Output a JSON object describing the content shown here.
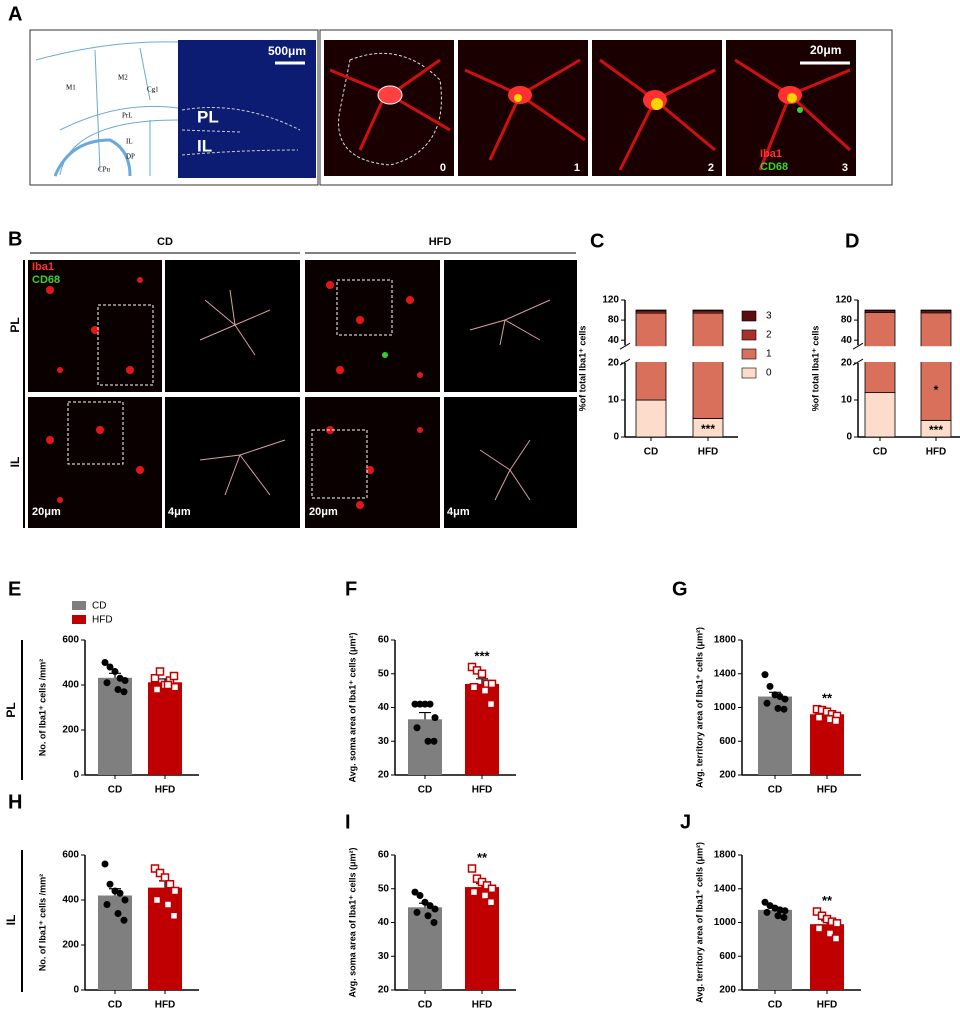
{
  "panel_a": {
    "label": "A",
    "atlas_labels": [
      "M1",
      "M2",
      "Cg1",
      "PrL",
      "IL",
      "DP",
      "CPu"
    ],
    "scale": "500μm",
    "regions": [
      "PL",
      "IL"
    ],
    "stages": [
      "0",
      "1",
      "2",
      "3"
    ],
    "scale_right": "20μm",
    "markers": [
      "Iba1",
      "CD68"
    ]
  },
  "panel_b": {
    "label": "B",
    "groups": [
      "CD",
      "HFD"
    ],
    "rows": [
      "PL",
      "IL"
    ],
    "markers": [
      "Iba1",
      "CD68"
    ],
    "scales": [
      "20μm",
      "4μm"
    ]
  },
  "row_labels": [
    "PL",
    "IL"
  ],
  "chart_data": [
    {
      "type": "stacked_bar",
      "panel": "C",
      "ylabel": "%of total Iba1⁺ cells",
      "categories": [
        "CD",
        "HFD"
      ],
      "series": [
        {
          "name": "0",
          "color": "#fddccb",
          "values": [
            10,
            5
          ],
          "annotations": [
            null,
            "***"
          ]
        },
        {
          "name": "1",
          "color": "#d8705c",
          "values": [
            84,
            89
          ]
        },
        {
          "name": "2",
          "color": "#a8322a",
          "values": [
            4,
            4
          ]
        },
        {
          "name": "3",
          "color": "#5c0d0d",
          "values": [
            2,
            2
          ]
        }
      ],
      "ylim": [
        0,
        120
      ],
      "axis_break": [
        20,
        30
      ],
      "yticks": [
        0,
        10,
        20,
        40,
        80,
        120
      ],
      "legend": true
    },
    {
      "type": "stacked_bar",
      "panel": "D",
      "ylabel": "%of total Iba1⁺ cells",
      "categories": [
        "CD",
        "HFD"
      ],
      "series": [
        {
          "name": "0",
          "color": "#fddccb",
          "values": [
            12,
            4.5
          ],
          "annotations": [
            null,
            "***"
          ]
        },
        {
          "name": "1",
          "color": "#d8705c",
          "values": [
            83,
            90
          ],
          "annotations": [
            null,
            "*"
          ]
        },
        {
          "name": "2",
          "color": "#a8322a",
          "values": [
            3,
            3.5
          ]
        },
        {
          "name": "3",
          "color": "#5c0d0d",
          "values": [
            2,
            2
          ]
        }
      ],
      "ylim": [
        0,
        120
      ],
      "axis_break": [
        20,
        30
      ],
      "yticks": [
        0,
        10,
        20,
        40,
        80,
        120
      ],
      "legend": false
    },
    {
      "type": "bar",
      "panel": "E",
      "ylabel": "No. of Iba1⁺ cells /mm²",
      "categories": [
        "CD",
        "HFD"
      ],
      "colors": [
        "#7f7f7f",
        "#c00000"
      ],
      "values": [
        432,
        412
      ],
      "errors": [
        20,
        15
      ],
      "point_colors": [
        "#000000",
        "#c00000"
      ],
      "point_shapes": [
        "circle",
        "square"
      ],
      "points": [
        [
          500,
          480,
          460,
          430,
          420,
          410,
          380,
          370
        ],
        [
          430,
          460,
          400,
          420,
          390,
          380,
          400,
          440
        ]
      ],
      "ylim": [
        0,
        600
      ],
      "yticks": [
        0,
        200,
        400,
        600
      ],
      "legend": true
    },
    {
      "type": "bar",
      "panel": "F",
      "ylabel": "Avg. soma area of Iba1⁺ cells (μm²)",
      "categories": [
        "CD",
        "HFD"
      ],
      "colors": [
        "#7f7f7f",
        "#c00000"
      ],
      "values": [
        36.5,
        47
      ],
      "errors": [
        2,
        1.5
      ],
      "annotations": [
        null,
        "***"
      ],
      "point_colors": [
        "#000000",
        "#c00000"
      ],
      "point_shapes": [
        "circle",
        "square"
      ],
      "points": [
        [
          41,
          41,
          41,
          41,
          37,
          34,
          30,
          30
        ],
        [
          52,
          51,
          50,
          47,
          47,
          46,
          45,
          41
        ]
      ],
      "ylim": [
        20,
        60
      ],
      "yticks": [
        20,
        30,
        40,
        50,
        60
      ],
      "legend": false
    },
    {
      "type": "bar",
      "panel": "G",
      "ylabel": "Avg. territory area of Iba1⁺ cells (μm²)",
      "categories": [
        "CD",
        "HFD"
      ],
      "colors": [
        "#7f7f7f",
        "#c00000"
      ],
      "values": [
        1130,
        920
      ],
      "errors": [
        50,
        25
      ],
      "annotations": [
        null,
        "**"
      ],
      "point_colors": [
        "#000000",
        "#c00000"
      ],
      "point_shapes": [
        "circle",
        "square"
      ],
      "points": [
        [
          1390,
          1250,
          1150,
          1130,
          1100,
          1050,
          990,
          980
        ],
        [
          980,
          970,
          950,
          920,
          900,
          880,
          860,
          840
        ]
      ],
      "ylim": [
        200,
        1800
      ],
      "yticks": [
        200,
        600,
        1000,
        1400,
        1800
      ],
      "legend": false
    },
    {
      "type": "bar",
      "panel": "H",
      "ylabel": "No. of Iba1⁺ cells /mm²",
      "categories": [
        "CD",
        "HFD"
      ],
      "colors": [
        "#7f7f7f",
        "#c00000"
      ],
      "values": [
        420,
        455
      ],
      "errors": [
        30,
        30
      ],
      "point_colors": [
        "#000000",
        "#c00000"
      ],
      "point_shapes": [
        "circle",
        "square"
      ],
      "points": [
        [
          560,
          470,
          440,
          430,
          400,
          380,
          340,
          310
        ],
        [
          540,
          520,
          500,
          470,
          440,
          400,
          380,
          330
        ]
      ],
      "ylim": [
        0,
        600
      ],
      "yticks": [
        0,
        200,
        400,
        600
      ],
      "legend": false
    },
    {
      "type": "bar",
      "panel": "I",
      "ylabel": "Avg. soma area of Iba1⁺ cells (μm²)",
      "categories": [
        "CD",
        "HFD"
      ],
      "colors": [
        "#7f7f7f",
        "#c00000"
      ],
      "values": [
        44.5,
        50.5
      ],
      "errors": [
        1.2,
        1
      ],
      "annotations": [
        null,
        "**"
      ],
      "point_colors": [
        "#000000",
        "#c00000"
      ],
      "point_shapes": [
        "circle",
        "square"
      ],
      "points": [
        [
          49,
          48,
          46,
          45,
          44,
          43,
          42,
          40
        ],
        [
          56,
          53,
          52,
          51,
          50,
          49,
          48,
          46
        ]
      ],
      "ylim": [
        20,
        60
      ],
      "yticks": [
        20,
        30,
        40,
        50,
        60
      ],
      "legend": false
    },
    {
      "type": "bar",
      "panel": "J",
      "ylabel": "Avg. territory area of Iba1⁺ cells (μm²)",
      "categories": [
        "CD",
        "HFD"
      ],
      "colors": [
        "#7f7f7f",
        "#c00000"
      ],
      "values": [
        1150,
        980
      ],
      "errors": [
        30,
        40
      ],
      "annotations": [
        null,
        "**"
      ],
      "point_colors": [
        "#000000",
        "#c00000"
      ],
      "point_shapes": [
        "circle",
        "square"
      ],
      "points": [
        [
          1240,
          1200,
          1170,
          1150,
          1140,
          1120,
          1080,
          1060
        ],
        [
          1130,
          1080,
          1040,
          1010,
          990,
          930,
          870,
          810
        ]
      ],
      "ylim": [
        200,
        1800
      ],
      "yticks": [
        200,
        600,
        1000,
        1400,
        1800
      ],
      "legend": false
    }
  ]
}
